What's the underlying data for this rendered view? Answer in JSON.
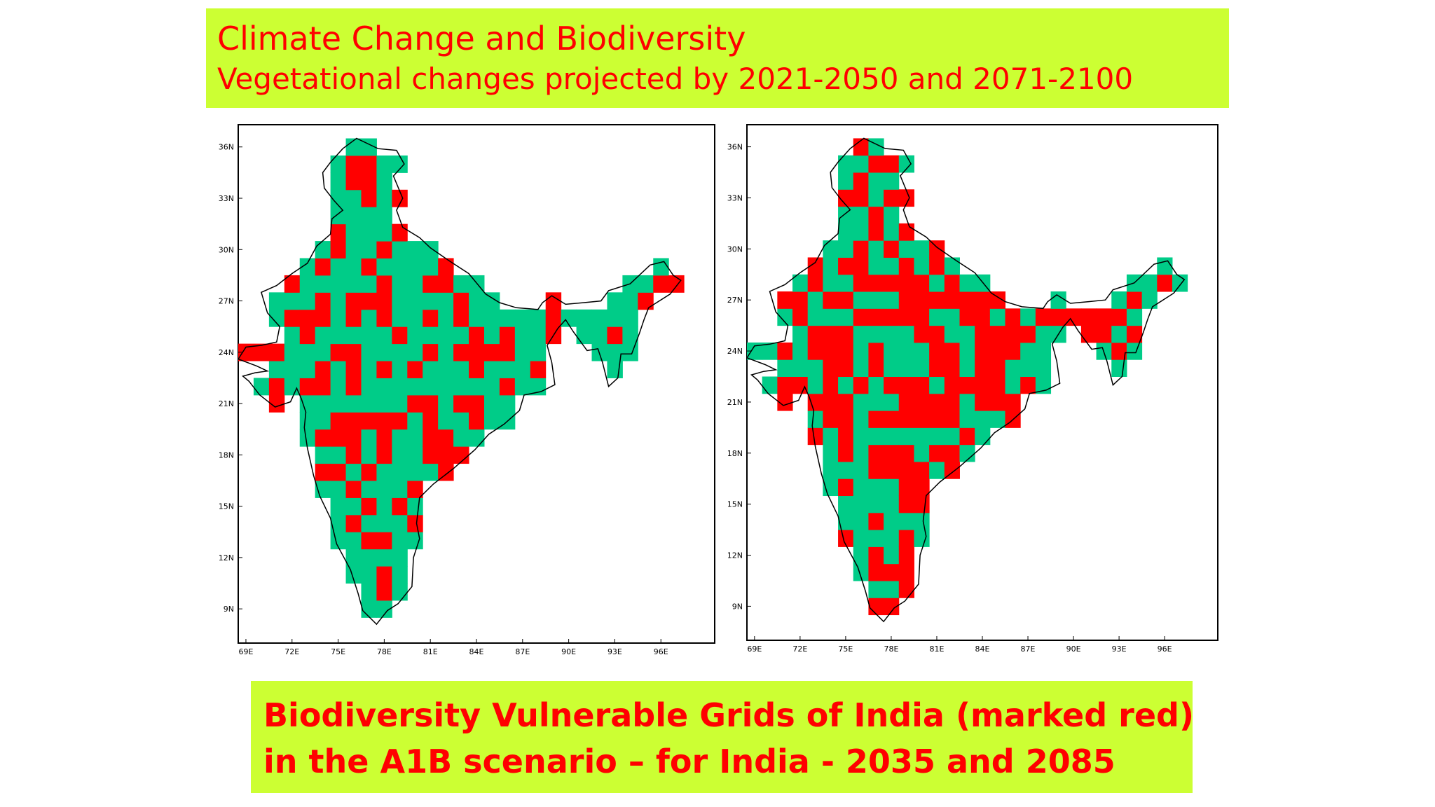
{
  "title": {
    "line1": "Climate Change and Biodiversity",
    "line2": "Vegetational changes projected by 2021-2050 and 2071-2100"
  },
  "caption": {
    "line1": "Biodiversity Vulnerable Grids of India (marked red)",
    "line2": "in the A1B scenario – for India - 2035 and 2085"
  },
  "colors": {
    "vulnerable": "#ff0000",
    "stable": "#00cc88",
    "outline": "#000000",
    "banner": "#ccff33"
  },
  "axes": {
    "lat_ticks": [
      "36N",
      "33N",
      "30N",
      "27N",
      "24N",
      "21N",
      "18N",
      "15N",
      "12N",
      "9N"
    ],
    "lon_ticks": [
      "69E",
      "72E",
      "75E",
      "78E",
      "81E",
      "84E",
      "87E",
      "90E",
      "93E",
      "96E"
    ]
  },
  "maps": [
    {
      "period": "2021-2050",
      "year": "2035",
      "red_share": 0.28
    },
    {
      "period": "2071-2100",
      "year": "2085",
      "red_share": 0.52
    }
  ]
}
